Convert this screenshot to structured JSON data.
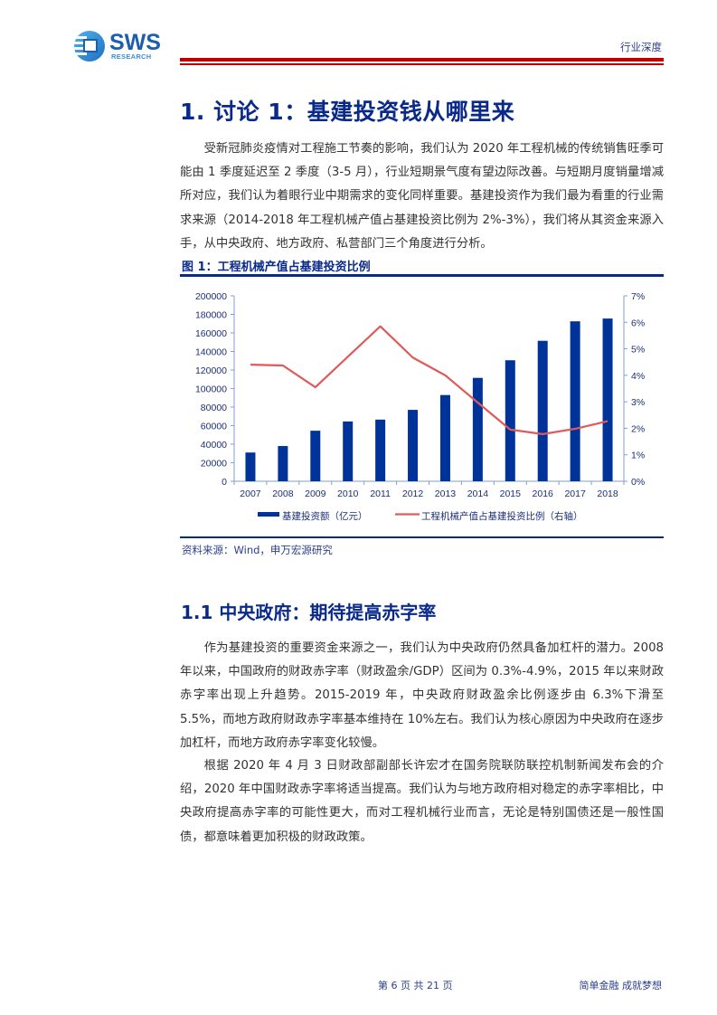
{
  "header": {
    "logo_text": "SWS",
    "logo_subtext": "RESEARCH",
    "category_tag": "行业深度",
    "rule_color": "#c00000"
  },
  "section1": {
    "title": "1. 讨论 1：基建投资钱从哪里来",
    "paragraph": "受新冠肺炎疫情对工程施工节奏的影响，我们认为 2020 年工程机械的传统销售旺季可能由 1 季度延迟至 2 季度（3-5 月），行业短期景气度有望边际改善。与短期月度销量增减所对应，我们认为着眼行业中期需求的变化同样重要。基建投资作为我们最为看重的行业需求来源（2014-2018 年工程机械产值占基建投资比例为 2%-3%），我们将从其资金来源入手，从中央政府、地方政府、私营部门三个角度进行分析。"
  },
  "figure1": {
    "title": "图 1：工程机械产值占基建投资比例",
    "source": "资料来源：Wind，申万宏源研究",
    "legend": {
      "bar_label": "基建投资额（亿元）",
      "line_label": "工程机械产值占基建投资比例（右轴）"
    },
    "left_ticks": [
      "0",
      "20000",
      "40000",
      "60000",
      "80000",
      "100000",
      "120000",
      "140000",
      "160000",
      "180000",
      "200000"
    ],
    "right_ticks": [
      "0%",
      "1%",
      "2%",
      "3%",
      "4%",
      "5%",
      "6%",
      "7%"
    ]
  },
  "chart_data": {
    "type": "bar",
    "title": "工程机械产值占基建投资比例",
    "categories": [
      "2007",
      "2008",
      "2009",
      "2010",
      "2011",
      "2012",
      "2013",
      "2014",
      "2015",
      "2016",
      "2017",
      "2018"
    ],
    "series": [
      {
        "name": "基建投资额（亿元）",
        "type": "bar",
        "axis": "left",
        "color": "#003399",
        "values": [
          31000,
          38000,
          54500,
          64500,
          66500,
          77000,
          93000,
          111500,
          130500,
          151500,
          172500,
          175500
        ]
      },
      {
        "name": "工程机械产值占基建投资比例（右轴）",
        "type": "line",
        "axis": "right",
        "color": "#e05a5a",
        "values": [
          4.4,
          4.37,
          3.55,
          4.7,
          5.85,
          4.67,
          4.0,
          2.97,
          1.95,
          1.78,
          1.98,
          2.27
        ]
      }
    ],
    "xlabel": "",
    "ylabel": "",
    "ylim": [
      0,
      200000
    ],
    "y2lim": [
      0,
      7
    ],
    "y2_unit": "%",
    "grid": false,
    "legend_position": "bottom"
  },
  "section1_1": {
    "title": "1.1  中央政府：期待提高赤字率",
    "paragraph1": "作为基建投资的重要资金来源之一，我们认为中央政府仍然具备加杠杆的潜力。2008 年以来，中国政府的财政赤字率（财政盈余/GDP）区间为 0.3%-4.9%，2015 年以来财政赤字率出现上升趋势。2015-2019 年，中央政府财政盈余比例逐步由 6.3%下滑至 5.5%，而地方政府财政赤字率基本维持在 10%左右。我们认为核心原因为中央政府在逐步加杠杆，而地方政府赤字率变化较慢。",
    "paragraph2": "根据 2020 年 4 月 3 日财政部副部长许宏才在国务院联防联控机制新闻发布会的介绍，2020 年中国财政赤字率将适当提高。我们认为与地方政府相对稳定的赤字率相比，中央政府提高赤字率的可能性更大，而对工程机械行业而言，无论是特别国债还是一般性国债，都意味着更加积极的财政政策。"
  },
  "footer": {
    "page_info": "第 6 页 共 21 页",
    "slogan": "简单金融 成就梦想"
  }
}
